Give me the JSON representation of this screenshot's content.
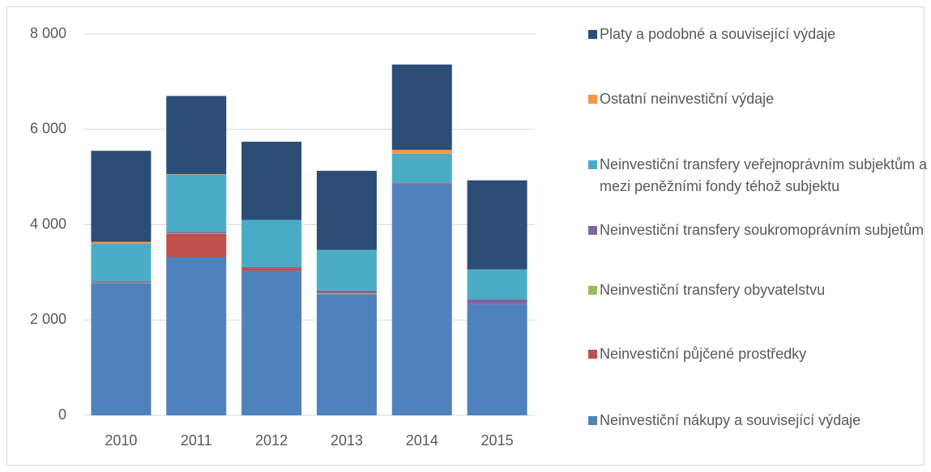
{
  "chart_data": {
    "type": "stacked_bar",
    "categories": [
      "2010",
      "2011",
      "2012",
      "2013",
      "2014",
      "2015"
    ],
    "series": [
      {
        "name": "Neinvestiční nákupy a související výdaje",
        "color": "#4f81bd",
        "values": [
          2770,
          3320,
          3030,
          2540,
          4830,
          2330
        ]
      },
      {
        "name": "Neinvestiční půjčené prostředky",
        "color": "#c0504d",
        "values": [
          0,
          490,
          60,
          0,
          0,
          0
        ]
      },
      {
        "name": "Neinvestiční transfery obyvatelstvu",
        "color": "#9bbb59",
        "values": [
          10,
          10,
          0,
          20,
          0,
          0
        ]
      },
      {
        "name": "Neinvestiční transfery soukromoprávním subjetům",
        "color": "#8064a2",
        "values": [
          30,
          30,
          20,
          60,
          40,
          100
        ]
      },
      {
        "name": "Neinvestiční transfery veřejnoprávním subjektům a mezi peněžními fondy téhož subjektu",
        "color": "#4bacc6",
        "values": [
          790,
          1200,
          990,
          850,
          620,
          630
        ]
      },
      {
        "name": "Ostatní neinvestiční výdaje",
        "color": "#f79646",
        "values": [
          40,
          10,
          0,
          0,
          80,
          0
        ]
      },
      {
        "name": "Platy a podobné a související výdaje",
        "color": "#2c4d75",
        "values": [
          1910,
          1640,
          1640,
          1660,
          1790,
          1870
        ]
      }
    ],
    "ylim": [
      0,
      8000
    ],
    "yticks": [
      0,
      {
        "value": 2000,
        "label": "2 000"
      },
      {
        "value": 4000,
        "label": "4 000"
      },
      {
        "value": 6000,
        "label": "6 000"
      },
      {
        "value": 8000,
        "label": "8 000"
      }
    ],
    "grid": true,
    "legend": "right"
  }
}
